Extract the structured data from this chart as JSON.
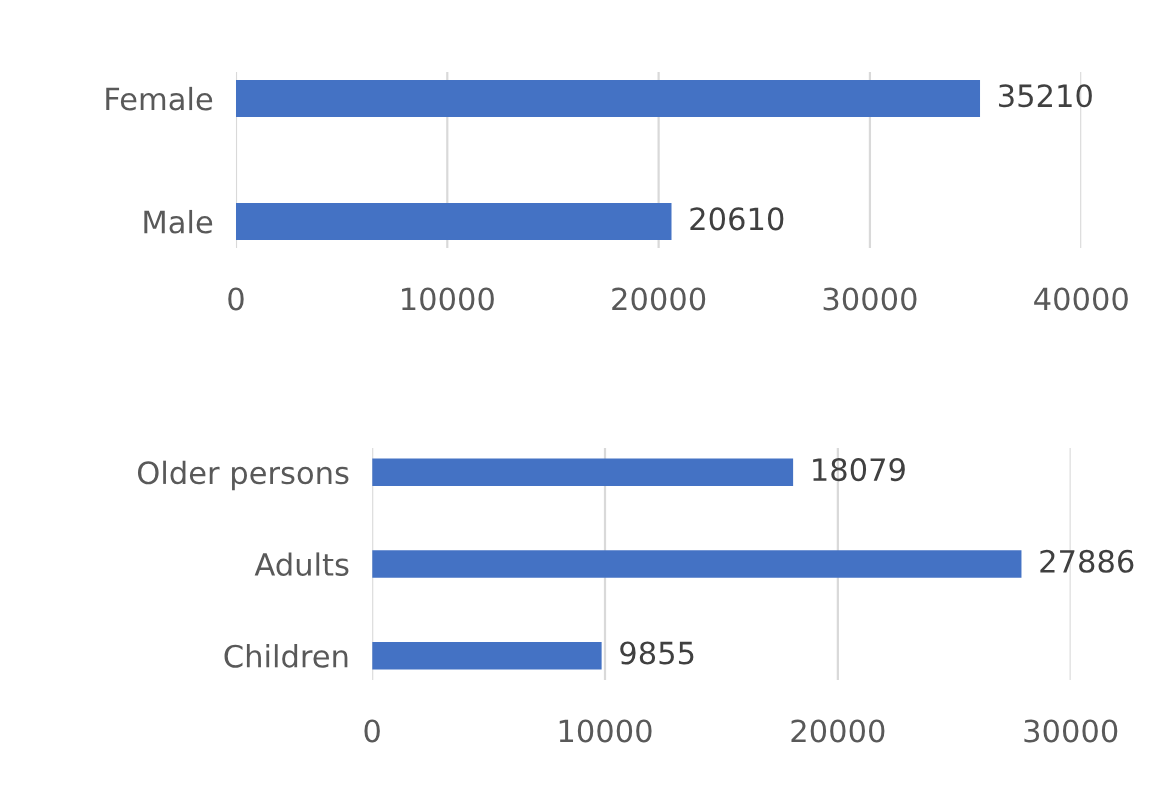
{
  "chart_data": [
    {
      "type": "bar",
      "orientation": "horizontal",
      "categories": [
        "Female",
        "Male"
      ],
      "values": [
        35210,
        20610
      ],
      "color": "#4472c4",
      "xlim": [
        0,
        40000
      ],
      "xticks": [
        0,
        10000,
        20000,
        30000,
        40000
      ],
      "grid": "x",
      "data_labels": true
    },
    {
      "type": "bar",
      "orientation": "horizontal",
      "categories": [
        "Older persons",
        "Adults",
        "Children"
      ],
      "values": [
        18079,
        27886,
        9855
      ],
      "color": "#4472c4",
      "xlim": [
        0,
        30000
      ],
      "xticks": [
        0,
        10000,
        20000,
        30000
      ],
      "grid": "x",
      "data_labels": true
    }
  ]
}
